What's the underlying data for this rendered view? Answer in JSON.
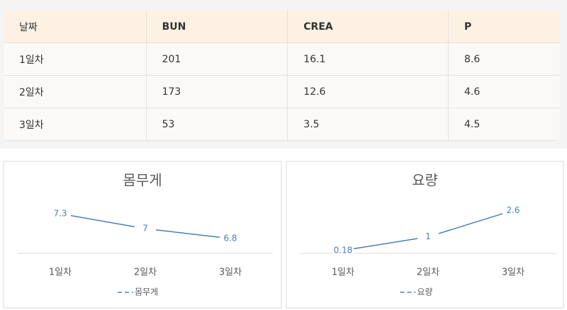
{
  "table": {
    "header": [
      "날짜",
      "BUN",
      "CREA",
      "P"
    ],
    "rows": [
      [
        "1일차",
        201,
        16.1,
        8.6
      ],
      [
        "2일차",
        173,
        12.6,
        4.6
      ],
      [
        "3일차",
        53,
        3.5,
        4.5
      ]
    ]
  },
  "chart_data": [
    {
      "type": "line",
      "title": "몸무게",
      "categories": [
        "1일차",
        "2일차",
        "3일차"
      ],
      "series": [
        {
          "name": "몸무게",
          "color": "#4a7ebb",
          "values": [
            7.3,
            7,
            6.8
          ]
        }
      ],
      "ylim": [
        6.5,
        7.5
      ]
    },
    {
      "type": "line",
      "title": "요량",
      "categories": [
        "1일차",
        "2일차",
        "3일차"
      ],
      "series": [
        {
          "name": "요량",
          "color": "#4a7ebb",
          "values": [
            0.18,
            1,
            2.6
          ]
        }
      ],
      "ylim": [
        0,
        3
      ]
    }
  ]
}
